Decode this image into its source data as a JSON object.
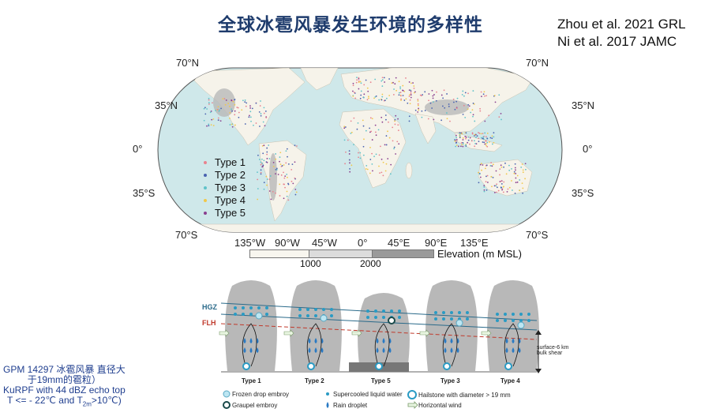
{
  "title": "全球冰雹风暴发生环境的多样性",
  "references": [
    "Zhou et al. 2021 GRL",
    "Ni et al. 2017 JAMC"
  ],
  "map": {
    "lat_labels_left": [
      "70°N",
      "35°N",
      "0°",
      "35°S",
      "70°S"
    ],
    "lat_labels_right": [
      "70°N",
      "35°N",
      "0°",
      "35°S",
      "70°S"
    ],
    "lon_labels": [
      "135°W",
      "90°W",
      "45°W",
      "0°",
      "45°E",
      "90°E",
      "135°E"
    ],
    "legend": [
      {
        "label": "Type 1",
        "color": "#e8838f"
      },
      {
        "label": "Type 2",
        "color": "#4a63b0"
      },
      {
        "label": "Type 3",
        "color": "#5fc2c9"
      },
      {
        "label": "Type 4",
        "color": "#f1c84b"
      },
      {
        "label": "Type 5",
        "color": "#8a3f8f"
      }
    ],
    "elevation": {
      "label": "Elevation (m MSL)",
      "ticks": [
        "1000",
        "2000"
      ]
    },
    "colors": {
      "ocean": "#cfe8ea",
      "land": "#f6f3ea",
      "high": "#b9b9b9"
    }
  },
  "diagram": {
    "layer_labels": {
      "hgz": "HGZ",
      "flh": "FLH"
    },
    "types": [
      "Type 1",
      "Type 2",
      "Type 5",
      "Type 3",
      "Type 4"
    ],
    "shear_label": [
      "surface-6 km",
      "bulk shear"
    ],
    "legend": [
      {
        "label": "Frozen drop embroy",
        "icon": "frozen-drop-icon"
      },
      {
        "label": "Supercooled liquid water",
        "icon": "supercooled-dot-icon"
      },
      {
        "label": "Hailstone with diameter > 19 mm",
        "icon": "hailstone-icon"
      },
      {
        "label": "Graupel embroy",
        "icon": "graupel-icon"
      },
      {
        "label": "Rain droplet",
        "icon": "rain-drop-icon"
      },
      {
        "label": "Horizontal wind",
        "icon": "wind-arrow-icon"
      }
    ]
  },
  "notes": [
    "GPM  14297 冰雹风暴 直径大",
    "于19mm的雹粒）",
    "KuRPF with 44 dBZ echo top",
    "T <= - 22℃ and T",
    "2m",
    ">10℃)"
  ]
}
